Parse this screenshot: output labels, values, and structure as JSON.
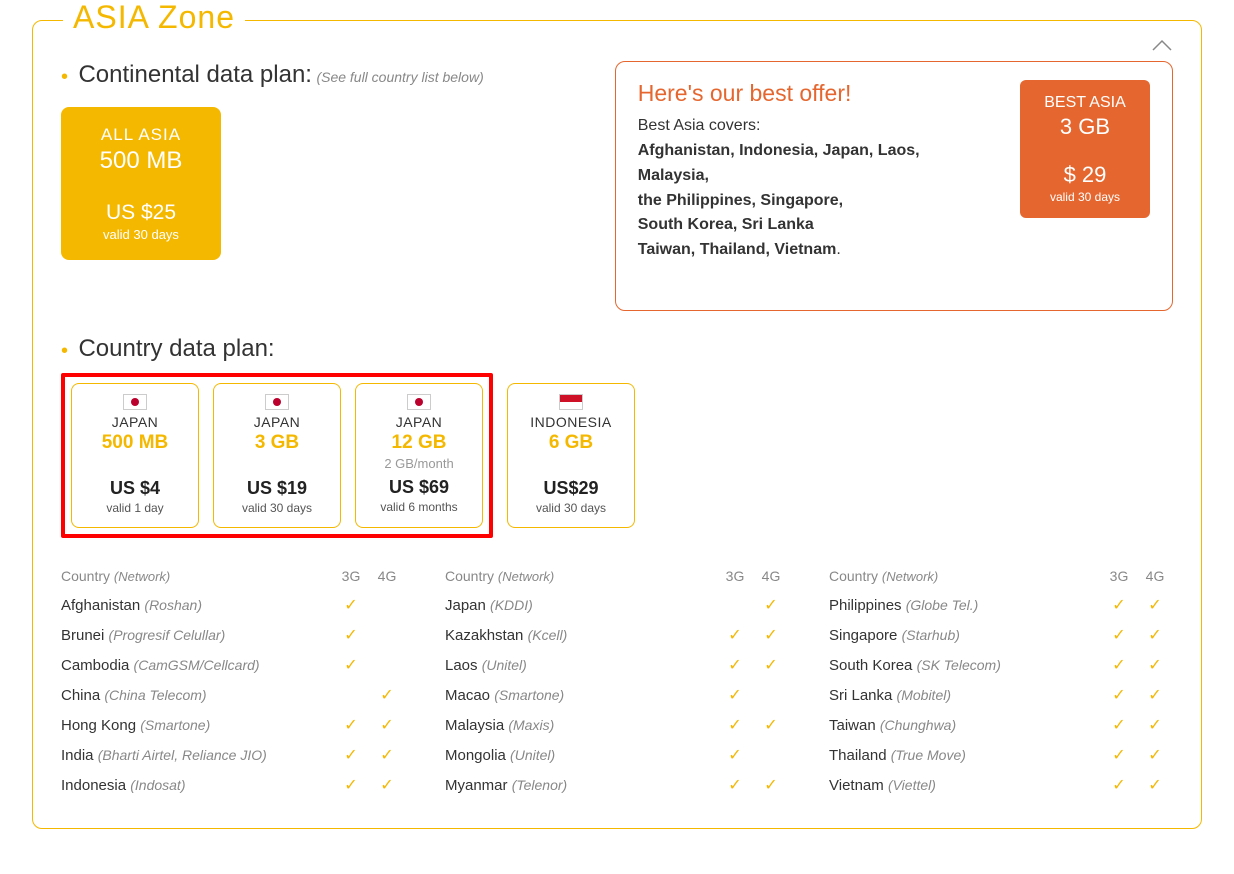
{
  "colors": {
    "accent_yellow": "#f5b800",
    "accent_orange": "#e5672f",
    "highlight_red": "#ff0000",
    "text_dark": "#333333",
    "text_muted": "#888888",
    "background": "#ffffff"
  },
  "panel": {
    "title": "ASIA Zone"
  },
  "continental": {
    "title": "Continental data plan:",
    "subtitle": "(See full country list below)",
    "card": {
      "title": "ALL ASIA",
      "data": "500 MB",
      "price": "US $25",
      "validity": "valid 30 days"
    }
  },
  "best_offer": {
    "title": "Here's our best offer!",
    "lead": "Best Asia covers:",
    "countries_line1": "Afghanistan, Indonesia, Japan, Laos,",
    "countries_line2": "Malaysia,",
    "countries_line3": "the Philippines, Singapore,",
    "countries_line4": "South Korea, Sri Lanka",
    "countries_line5": "Taiwan, Thailand, Vietnam",
    "period": ".",
    "card": {
      "title": "BEST ASIA",
      "data": "3 GB",
      "price": "$ 29",
      "validity": "valid 30 days"
    }
  },
  "country_plan": {
    "title": "Country data plan:",
    "highlighted": [
      {
        "flag": "jp",
        "country": "JAPAN",
        "data": "500 MB",
        "monthly": "",
        "price": "US $4",
        "validity": "valid 1 day"
      },
      {
        "flag": "jp",
        "country": "JAPAN",
        "data": "3 GB",
        "monthly": "",
        "price": "US $19",
        "validity": "valid 30 days"
      },
      {
        "flag": "jp",
        "country": "JAPAN",
        "data": "12 GB",
        "monthly": "2 GB/month",
        "price": "US $69",
        "validity": "valid 6 months"
      }
    ],
    "others": [
      {
        "flag": "id",
        "country": "INDONESIA",
        "data": "6 GB",
        "monthly": "",
        "price": "US$29",
        "validity": "valid 30 days"
      }
    ]
  },
  "coverage": {
    "header_country": "Country",
    "header_network": "(Network)",
    "header_3g": "3G",
    "header_4g": "4G",
    "columns": [
      [
        {
          "country": "Afghanistan",
          "network": "(Roshan)",
          "g3": true,
          "g4": false
        },
        {
          "country": "Brunei",
          "network": "(Progresif Celullar)",
          "g3": true,
          "g4": false
        },
        {
          "country": "Cambodia",
          "network": "(CamGSM/Cellcard)",
          "g3": true,
          "g4": false
        },
        {
          "country": "China",
          "network": "(China Telecom)",
          "g3": false,
          "g4": true
        },
        {
          "country": "Hong Kong",
          "network": "(Smartone)",
          "g3": true,
          "g4": true
        },
        {
          "country": "India",
          "network": "(Bharti Airtel, Reliance JIO)",
          "g3": true,
          "g4": true
        },
        {
          "country": "Indonesia",
          "network": "(Indosat)",
          "g3": true,
          "g4": true
        }
      ],
      [
        {
          "country": "Japan",
          "network": "(KDDI)",
          "g3": false,
          "g4": true
        },
        {
          "country": "Kazakhstan",
          "network": "(Kcell)",
          "g3": true,
          "g4": true
        },
        {
          "country": "Laos",
          "network": "(Unitel)",
          "g3": true,
          "g4": true
        },
        {
          "country": "Macao",
          "network": "(Smartone)",
          "g3": true,
          "g4": false
        },
        {
          "country": "Malaysia",
          "network": "(Maxis)",
          "g3": true,
          "g4": true
        },
        {
          "country": "Mongolia",
          "network": "(Unitel)",
          "g3": true,
          "g4": false
        },
        {
          "country": "Myanmar",
          "network": "(Telenor)",
          "g3": true,
          "g4": true
        }
      ],
      [
        {
          "country": "Philippines",
          "network": "(Globe Tel.)",
          "g3": true,
          "g4": true
        },
        {
          "country": "Singapore",
          "network": "(Starhub)",
          "g3": true,
          "g4": true
        },
        {
          "country": "South Korea",
          "network": "(SK Telecom)",
          "g3": true,
          "g4": true
        },
        {
          "country": "Sri Lanka",
          "network": "(Mobitel)",
          "g3": true,
          "g4": true
        },
        {
          "country": "Taiwan",
          "network": "(Chunghwa)",
          "g3": true,
          "g4": true
        },
        {
          "country": "Thailand",
          "network": "(True Move)",
          "g3": true,
          "g4": true
        },
        {
          "country": "Vietnam",
          "network": "(Viettel)",
          "g3": true,
          "g4": true
        }
      ]
    ]
  }
}
